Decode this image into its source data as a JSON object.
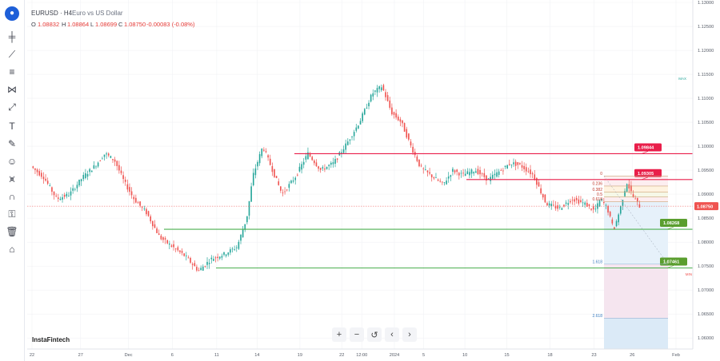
{
  "header": {
    "symbol": "EURUSD · H4",
    "description": "Euro vs US Dollar",
    "ohlc": {
      "o_label": "O",
      "o": "1.08832",
      "h_label": "H",
      "h": "1.08864",
      "l_label": "L",
      "l": "1.08699",
      "c_label": "C",
      "c": "1.08750",
      "change": "-0.00083 (-0.08%)"
    }
  },
  "brand": "InstaFintech",
  "toolbar": {
    "icons": [
      "logo",
      "crosshair-icon",
      "trend-line-icon",
      "fib-icon",
      "pattern-icon",
      "forecast-icon",
      "brush-icon",
      "text-icon",
      "pencil-icon",
      "emoji-icon",
      "ruler-icon",
      "magnet-icon",
      "lock-icon",
      "trash-icon",
      "home-icon"
    ]
  },
  "zoom_controls": [
    "+",
    "−",
    "↺",
    "‹",
    "›"
  ],
  "colors": {
    "up": "#26a69a",
    "down": "#ef5350",
    "resistance": "#e91e4a",
    "support": "#4caf50",
    "current": "#ef5350",
    "label_green": "#5a9e2e"
  },
  "chart_data": {
    "type": "candlestick",
    "title": "EURUSD · H4",
    "y_axis": {
      "ticks": [
        "1.13000",
        "1.12500",
        "1.12000",
        "1.11500",
        "1.11000",
        "1.10500",
        "1.10000",
        "1.09500",
        "1.09000",
        "1.08500",
        "1.08000",
        "1.07500",
        "1.07000",
        "1.06500",
        "1.06000"
      ],
      "ylim": [
        1.0577,
        1.1305
      ]
    },
    "x_axis": {
      "ticks": [
        {
          "label": "22",
          "pos": 0.0
        },
        {
          "label": "27",
          "pos": 0.0755
        },
        {
          "label": "Dec",
          "pos": 0.1498
        },
        {
          "label": "6",
          "pos": 0.2178
        },
        {
          "label": "11",
          "pos": 0.2868
        },
        {
          "label": "14",
          "pos": 0.3496
        },
        {
          "label": "19",
          "pos": 0.416
        },
        {
          "label": "22",
          "pos": 0.481
        },
        {
          "label": "12:00",
          "pos": 0.5121
        },
        {
          "label": "2024",
          "pos": 0.5627
        },
        {
          "label": "5",
          "pos": 0.6082
        },
        {
          "label": "10",
          "pos": 0.6722
        },
        {
          "label": "15",
          "pos": 0.7373
        },
        {
          "label": "18",
          "pos": 0.8044
        },
        {
          "label": "23",
          "pos": 0.8727
        },
        {
          "label": "26",
          "pos": 0.932
        },
        {
          "label": "Feb",
          "pos": 1.0
        }
      ]
    },
    "levels": [
      {
        "name": "resistance-1",
        "value": 1.09844,
        "label": "1.09844",
        "color": "#e91e4a"
      },
      {
        "name": "resistance-2",
        "value": 1.09305,
        "label": "1.09305",
        "color": "#e91e4a"
      },
      {
        "name": "support-1",
        "value": 1.08268,
        "label": "1.08268",
        "color": "#4caf50"
      },
      {
        "name": "support-2",
        "value": 1.07461,
        "label": "1.07461",
        "color": "#4caf50"
      }
    ],
    "current_price": {
      "value": 1.0875,
      "label": "1.08750"
    },
    "fib_labels": [
      "0",
      "0.236",
      "0.382",
      "0.5",
      "0.618",
      "1.618",
      "2.618"
    ],
    "fib_values": [
      1.0938,
      1.0917,
      1.0904,
      1.0894,
      1.0884,
      1.0754,
      1.0641
    ],
    "corner_labels": {
      "top": "MAX",
      "bottom": "MIN"
    },
    "path_points": [
      [
        0.0,
        1.0958
      ],
      [
        0.02,
        1.0935
      ],
      [
        0.04,
        1.089
      ],
      [
        0.06,
        1.09
      ],
      [
        0.08,
        1.0935
      ],
      [
        0.1,
        1.096
      ],
      [
        0.115,
        1.0985
      ],
      [
        0.13,
        1.097
      ],
      [
        0.145,
        1.0925
      ],
      [
        0.16,
        1.089
      ],
      [
        0.18,
        1.086
      ],
      [
        0.2,
        1.081
      ],
      [
        0.22,
        1.079
      ],
      [
        0.24,
        1.077
      ],
      [
        0.26,
        1.074
      ],
      [
        0.28,
        1.0765
      ],
      [
        0.3,
        1.0775
      ],
      [
        0.32,
        1.079
      ],
      [
        0.335,
        1.085
      ],
      [
        0.345,
        1.094
      ],
      [
        0.36,
        1.1
      ],
      [
        0.375,
        1.095
      ],
      [
        0.39,
        1.09
      ],
      [
        0.41,
        1.0935
      ],
      [
        0.43,
        1.0985
      ],
      [
        0.45,
        1.095
      ],
      [
        0.47,
        1.0965
      ],
      [
        0.49,
        1.1005
      ],
      [
        0.51,
        1.105
      ],
      [
        0.53,
        1.111
      ],
      [
        0.545,
        1.1125
      ],
      [
        0.56,
        1.107
      ],
      [
        0.575,
        1.105
      ],
      [
        0.59,
        1.1
      ],
      [
        0.605,
        1.0955
      ],
      [
        0.62,
        1.094
      ],
      [
        0.64,
        1.092
      ],
      [
        0.655,
        1.095
      ],
      [
        0.67,
        1.094
      ],
      [
        0.69,
        1.095
      ],
      [
        0.71,
        1.093
      ],
      [
        0.73,
        1.095
      ],
      [
        0.745,
        1.0965
      ],
      [
        0.76,
        1.096
      ],
      [
        0.78,
        1.094
      ],
      [
        0.8,
        1.088
      ],
      [
        0.82,
        1.087
      ],
      [
        0.84,
        1.089
      ],
      [
        0.86,
        1.088
      ],
      [
        0.875,
        1.0865
      ],
      [
        0.885,
        1.089
      ],
      [
        0.895,
        1.087
      ],
      [
        0.905,
        1.0825
      ],
      [
        0.915,
        1.087
      ],
      [
        0.925,
        1.0925
      ],
      [
        0.935,
        1.0895
      ],
      [
        0.945,
        1.0875
      ]
    ]
  }
}
